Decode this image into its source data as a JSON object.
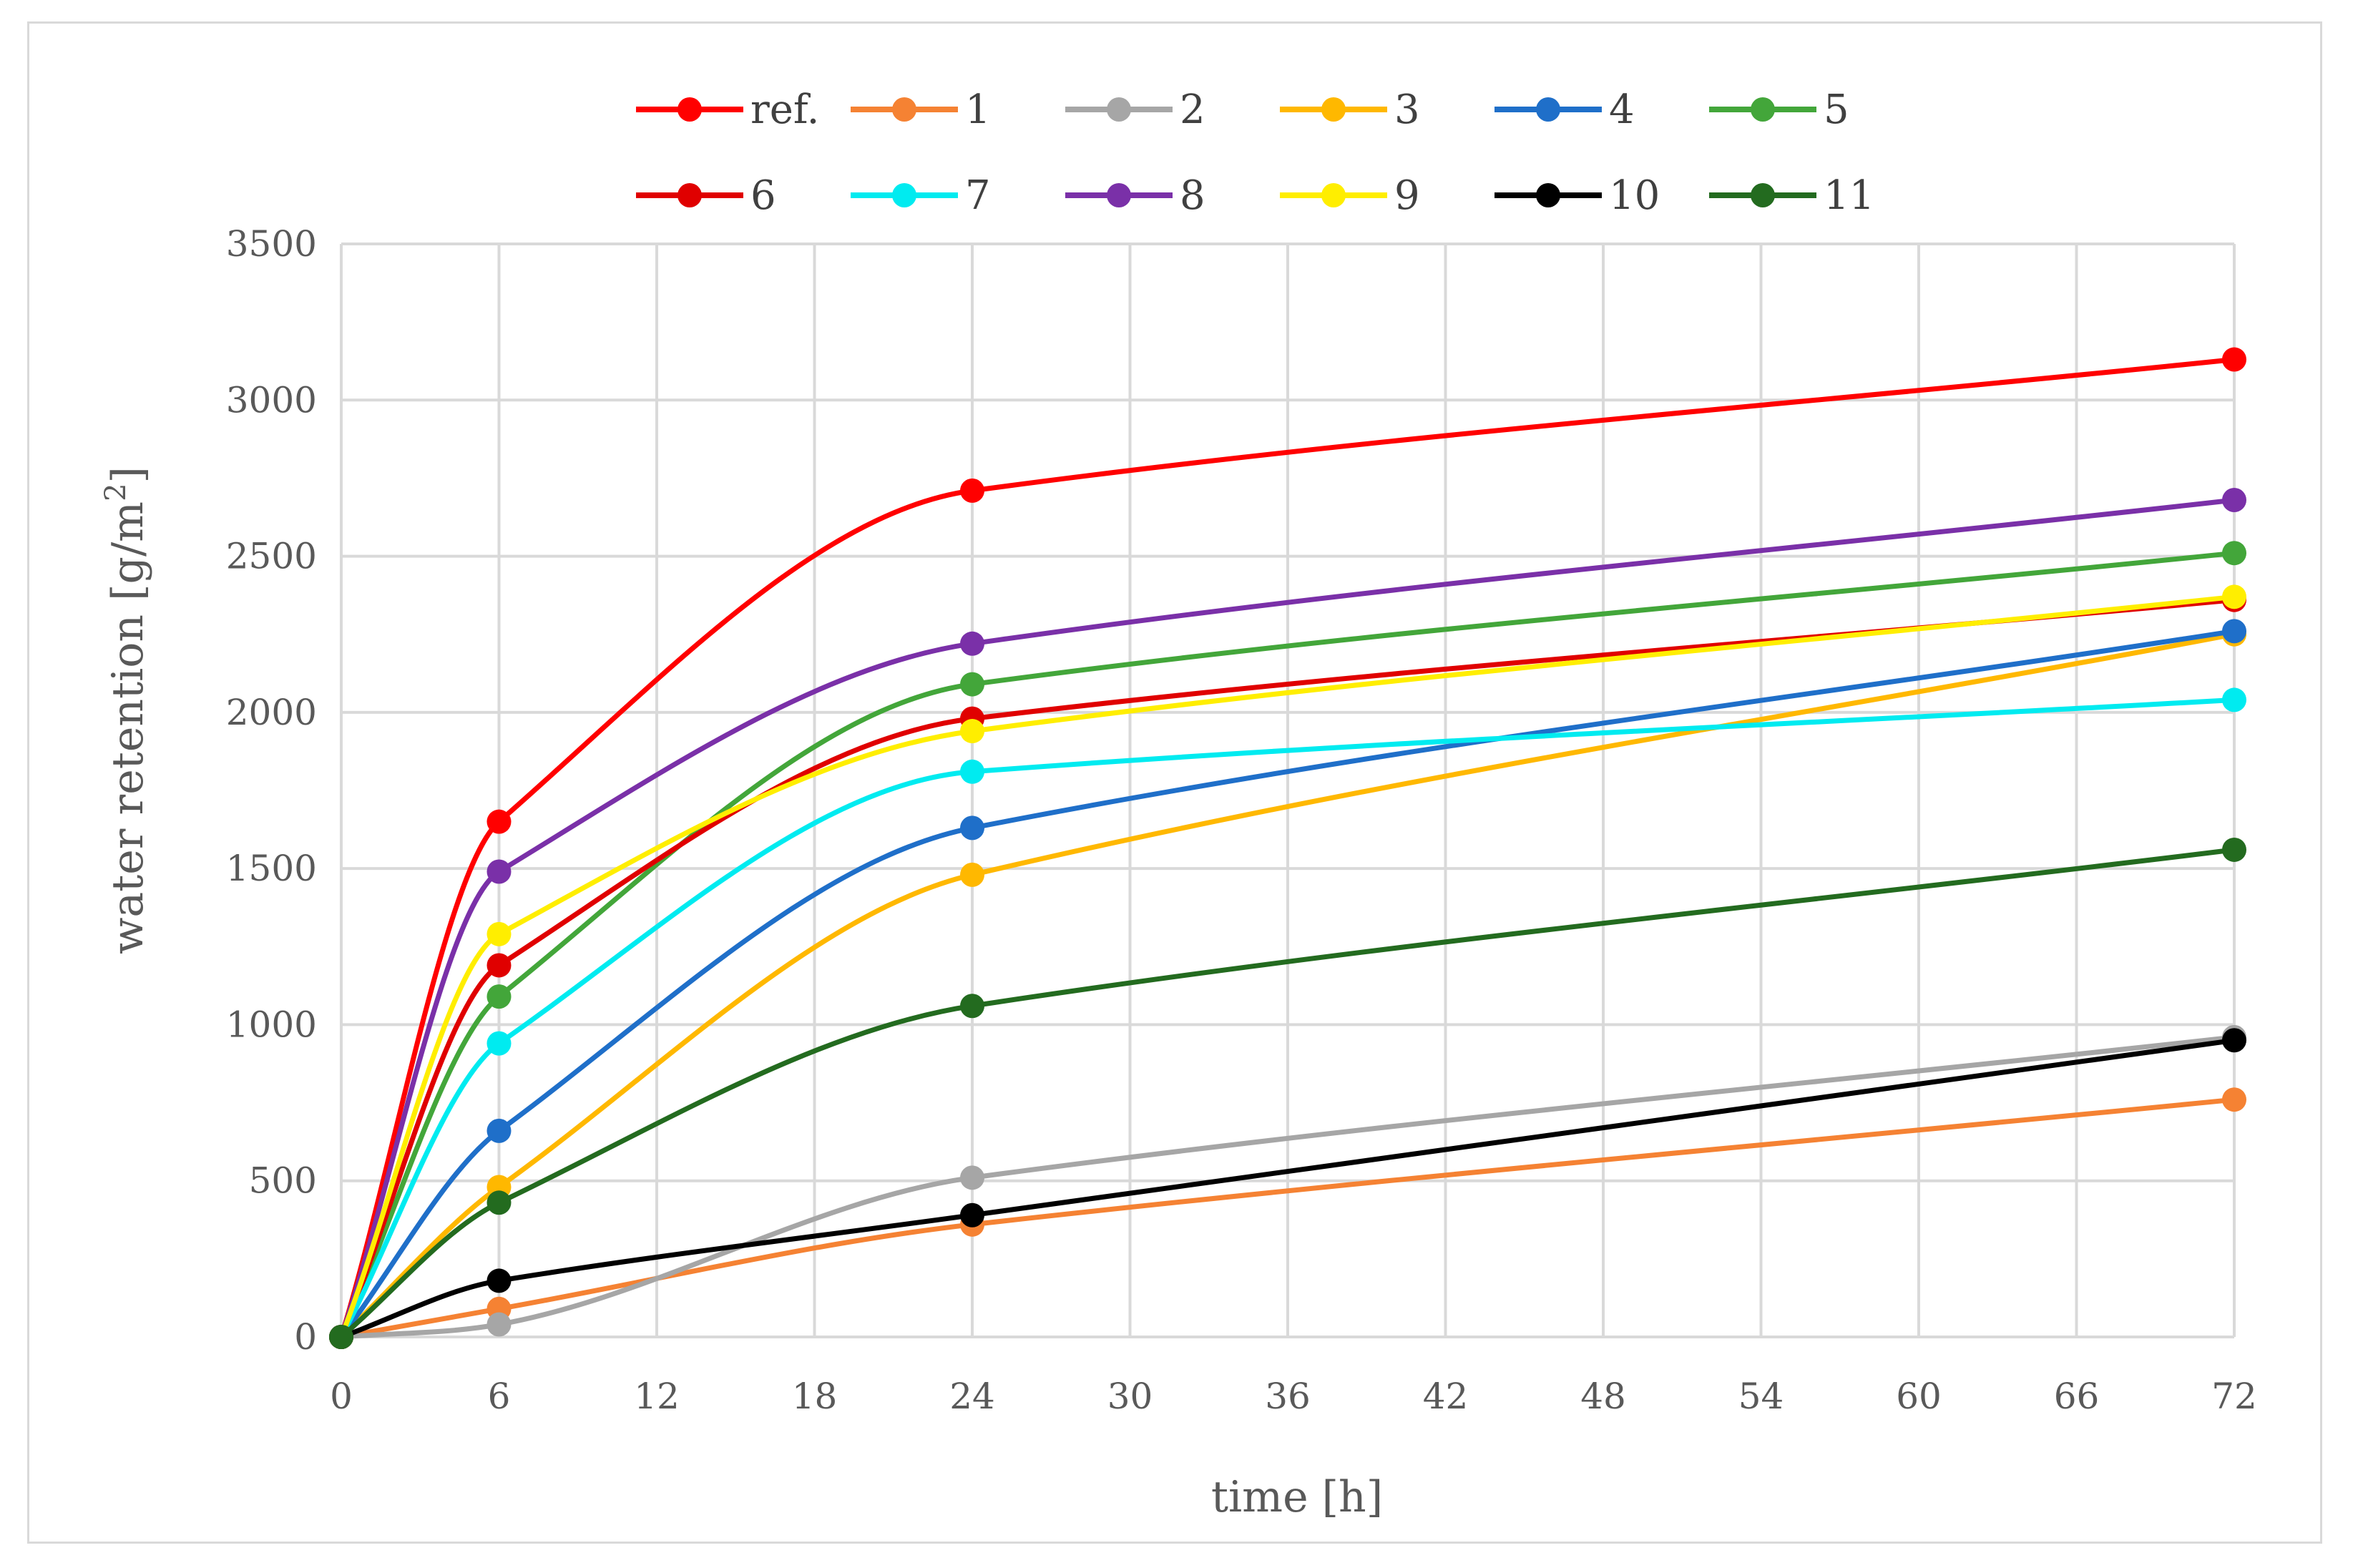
{
  "chart_data": {
    "type": "line",
    "title": "",
    "xlabel": "time [h]",
    "ylabel": "water retention [g/m²]",
    "ylabel_main": "water retention [g/m",
    "ylabel_sup": "2",
    "ylabel_end": "]",
    "x": [
      0,
      6,
      24,
      72
    ],
    "xlim": [
      0,
      72
    ],
    "ylim": [
      0,
      3500
    ],
    "x_ticks": [
      0,
      6,
      12,
      18,
      24,
      30,
      36,
      42,
      48,
      54,
      60,
      66,
      72
    ],
    "y_ticks": [
      0,
      500,
      1000,
      1500,
      2000,
      2500,
      3000,
      3500
    ],
    "grid": true,
    "legend_position": "top",
    "series": [
      {
        "name": "ref.",
        "color": "#ff0000",
        "values": [
          0,
          1650,
          2710,
          3130
        ]
      },
      {
        "name": "1",
        "color": "#f58233",
        "values": [
          0,
          90,
          360,
          760
        ]
      },
      {
        "name": "2",
        "color": "#a6a6a6",
        "values": [
          0,
          40,
          510,
          960
        ]
      },
      {
        "name": "3",
        "color": "#ffb800",
        "values": [
          0,
          480,
          1480,
          2250
        ]
      },
      {
        "name": "4",
        "color": "#1f6fc9",
        "values": [
          0,
          660,
          1630,
          2260
        ]
      },
      {
        "name": "5",
        "color": "#43a63a",
        "values": [
          0,
          1090,
          2090,
          2510
        ]
      },
      {
        "name": "6",
        "color": "#e00000",
        "values": [
          0,
          1190,
          1980,
          2360
        ]
      },
      {
        "name": "7",
        "color": "#00ebf0",
        "values": [
          0,
          940,
          1810,
          2040
        ]
      },
      {
        "name": "8",
        "color": "#7a30a8",
        "values": [
          0,
          1490,
          2220,
          2680
        ]
      },
      {
        "name": "9",
        "color": "#ffee00",
        "values": [
          0,
          1290,
          1940,
          2370
        ]
      },
      {
        "name": "10",
        "color": "#000000",
        "values": [
          0,
          180,
          390,
          950
        ]
      },
      {
        "name": "11",
        "color": "#236b1f",
        "values": [
          0,
          430,
          1060,
          1560
        ]
      }
    ]
  }
}
